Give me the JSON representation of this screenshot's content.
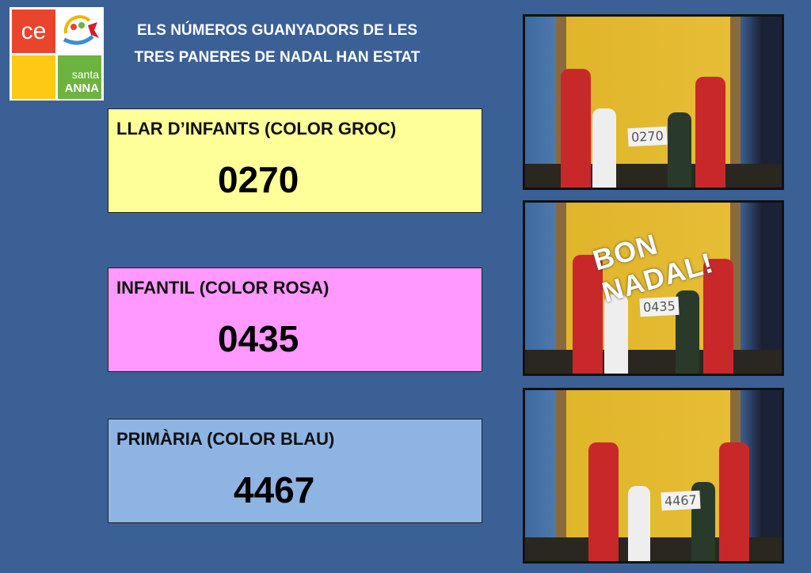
{
  "logo": {
    "top_left": "ce",
    "bottom_right_line1": "santa",
    "bottom_right_line2": "ANNA"
  },
  "heading": {
    "line1": "ELS NÚMEROS GUANYADORS DE LES",
    "line2": "TRES PANERES DE NADAL HAN ESTAT"
  },
  "winners": [
    {
      "label": "LLAR D’INFANTS (COLOR GROC)",
      "number": "0270",
      "color": "#ffff99"
    },
    {
      "label": "INFANTIL (COLOR ROSA)",
      "number": "0435",
      "color": "#ff99ff"
    },
    {
      "label": "PRIMÀRIA (COLOR BLAU)",
      "number": "4467",
      "color": "#8eb4e3"
    }
  ],
  "photos": [
    {
      "sign": "0270"
    },
    {
      "sign": "0435",
      "overlay": "BON NADAL!"
    },
    {
      "sign": "4467"
    }
  ]
}
